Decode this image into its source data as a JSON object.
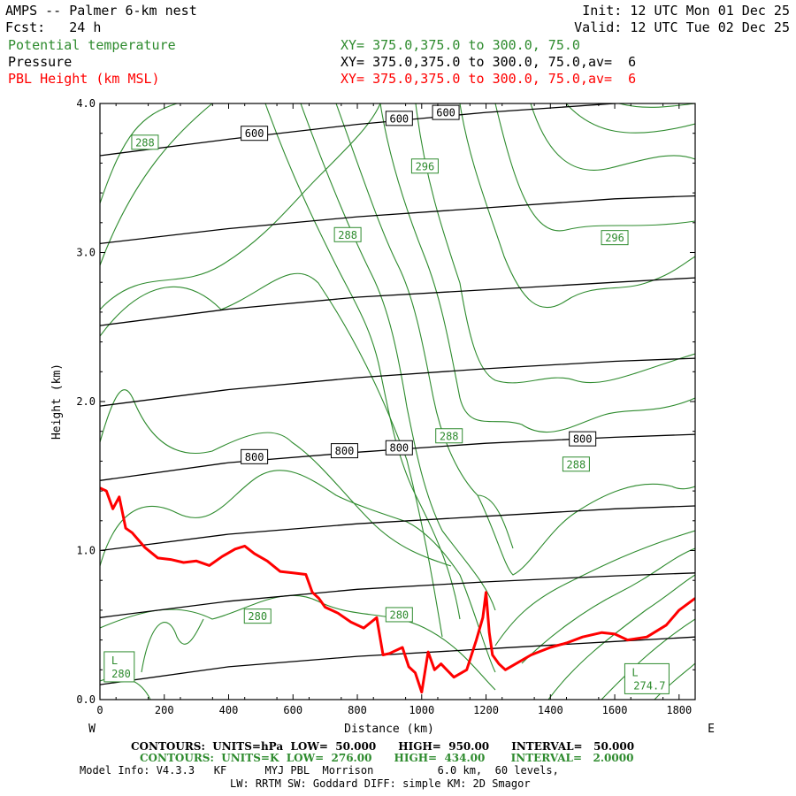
{
  "header": {
    "title": "AMPS -- Palmer 6-km nest",
    "forecast": "Fcst:   24 h",
    "init": "Init: 12 UTC Mon 01 Dec 25",
    "valid": "Valid: 12 UTC Tue 02 Dec 25",
    "field1_name": "Potential temperature",
    "field1_xy": "XY= 375.0,375.0 to 300.0, 75.0",
    "field2_name": "Pressure",
    "field2_xy": "XY= 375.0,375.0 to 300.0, 75.0,av=  6",
    "field3_name": "PBL Height (km MSL)",
    "field3_xy": "XY= 375.0,375.0 to 300.0, 75.0,av=  6"
  },
  "colors": {
    "theta": "#2e8b2e",
    "pressure": "#000000",
    "pbl": "#ff0000"
  },
  "chart_data": {
    "type": "line",
    "title": "AMPS -- Palmer 6-km nest",
    "xlabel": "Distance (km)",
    "ylabel": "Height (km)",
    "xlim": [
      0,
      1850
    ],
    "ylim": [
      0,
      4.0
    ],
    "x_ticks": [
      "0",
      "200",
      "400",
      "600",
      "800",
      "1000",
      "1200",
      "1400",
      "1600",
      "1800"
    ],
    "y_ticks": [
      "0.0",
      "1.0",
      "2.0",
      "3.0",
      "4.0"
    ],
    "x_left_label": "W",
    "x_right_label": "E",
    "series": [
      {
        "name": "PBL Height (km MSL)",
        "color": "#ff0000",
        "x": [
          0,
          20,
          40,
          60,
          80,
          100,
          140,
          180,
          220,
          260,
          300,
          340,
          380,
          420,
          450,
          480,
          520,
          560,
          600,
          640,
          660,
          680,
          700,
          740,
          780,
          820,
          860,
          880,
          900,
          940,
          960,
          980,
          1000,
          1020,
          1040,
          1060,
          1100,
          1140,
          1170,
          1190,
          1200,
          1210,
          1220,
          1240,
          1260,
          1300,
          1340,
          1400,
          1450,
          1500,
          1560,
          1600,
          1640,
          1700,
          1760,
          1800,
          1850
        ],
        "values": [
          1.42,
          1.4,
          1.28,
          1.36,
          1.15,
          1.12,
          1.02,
          0.95,
          0.94,
          0.92,
          0.93,
          0.9,
          0.96,
          1.01,
          1.03,
          0.98,
          0.93,
          0.86,
          0.85,
          0.84,
          0.72,
          0.68,
          0.62,
          0.58,
          0.52,
          0.48,
          0.55,
          0.3,
          0.31,
          0.35,
          0.22,
          0.18,
          0.05,
          0.32,
          0.2,
          0.24,
          0.15,
          0.2,
          0.4,
          0.55,
          0.72,
          0.45,
          0.3,
          0.24,
          0.2,
          0.25,
          0.3,
          0.35,
          0.38,
          0.42,
          0.45,
          0.44,
          0.4,
          0.42,
          0.5,
          0.6,
          0.68
        ]
      }
    ],
    "pressure_contours": [
      {
        "label": "600",
        "x": [
          0,
          400,
          800,
          1200,
          1600,
          1850
        ],
        "values": [
          3.65,
          3.76,
          3.86,
          3.94,
          4.0,
          4.03
        ]
      },
      {
        "label": "",
        "x": [
          0,
          400,
          800,
          1200,
          1600,
          1850
        ],
        "values": [
          3.06,
          3.16,
          3.24,
          3.3,
          3.36,
          3.38
        ]
      },
      {
        "label": "",
        "x": [
          0,
          400,
          800,
          1200,
          1600,
          1850
        ],
        "values": [
          2.51,
          2.62,
          2.7,
          2.75,
          2.8,
          2.83
        ]
      },
      {
        "label": "",
        "x": [
          0,
          400,
          800,
          1200,
          1600,
          1850
        ],
        "values": [
          1.97,
          2.08,
          2.16,
          2.22,
          2.27,
          2.29
        ]
      },
      {
        "label": "800",
        "x": [
          0,
          400,
          800,
          1200,
          1600,
          1850
        ],
        "values": [
          1.47,
          1.59,
          1.66,
          1.72,
          1.76,
          1.78
        ]
      },
      {
        "label": "",
        "x": [
          0,
          400,
          800,
          1200,
          1600,
          1850
        ],
        "values": [
          1.0,
          1.11,
          1.18,
          1.23,
          1.28,
          1.3
        ]
      },
      {
        "label": "",
        "x": [
          0,
          400,
          800,
          1200,
          1600,
          1850
        ],
        "values": [
          0.55,
          0.66,
          0.74,
          0.79,
          0.83,
          0.85
        ]
      },
      {
        "label": "",
        "x": [
          0,
          400,
          800,
          1200,
          1600,
          1850
        ],
        "values": [
          0.1,
          0.22,
          0.29,
          0.34,
          0.39,
          0.42
        ]
      }
    ],
    "pressure_labels": [
      {
        "text": "600",
        "x": 480,
        "y": 3.8
      },
      {
        "text": "600",
        "x": 930,
        "y": 3.9
      },
      {
        "text": "600",
        "x": 1075,
        "y": 3.94
      },
      {
        "text": "800",
        "x": 480,
        "y": 1.63
      },
      {
        "text": "800",
        "x": 760,
        "y": 1.67
      },
      {
        "text": "800",
        "x": 930,
        "y": 1.69
      },
      {
        "text": "800",
        "x": 1500,
        "y": 1.75
      }
    ],
    "theta_labels": [
      {
        "text": "288",
        "x": 140,
        "y": 3.74
      },
      {
        "text": "296",
        "x": 1010,
        "y": 3.58
      },
      {
        "text": "288",
        "x": 770,
        "y": 3.12
      },
      {
        "text": "296",
        "x": 1600,
        "y": 3.1
      },
      {
        "text": "288",
        "x": 1085,
        "y": 1.77
      },
      {
        "text": "288",
        "x": 1480,
        "y": 1.58
      },
      {
        "text": "280",
        "x": 490,
        "y": 0.56
      },
      {
        "text": "280",
        "x": 930,
        "y": 0.57
      }
    ],
    "lows": [
      {
        "letter": "L",
        "value": "280",
        "x": 60,
        "y": 0.22
      },
      {
        "letter": "L",
        "value": "274.7",
        "x": 1700,
        "y": 0.14
      }
    ]
  },
  "footer": {
    "line1": "CONTOURS:  UNITS=hPa  LOW=  50.000      HIGH=  950.00      INTERVAL=   50.000",
    "line2": "CONTOURS:  UNITS=K  LOW=  276.00      HIGH=  434.00       INTERVAL=   2.0000",
    "line3": "Model Info: V4.3.3   KF      MYJ PBL  Morrison          6.0 km,  60 levels,",
    "line4": "LW: RRTM SW: Goddard DIFF: simple KM: 2D Smagor"
  }
}
